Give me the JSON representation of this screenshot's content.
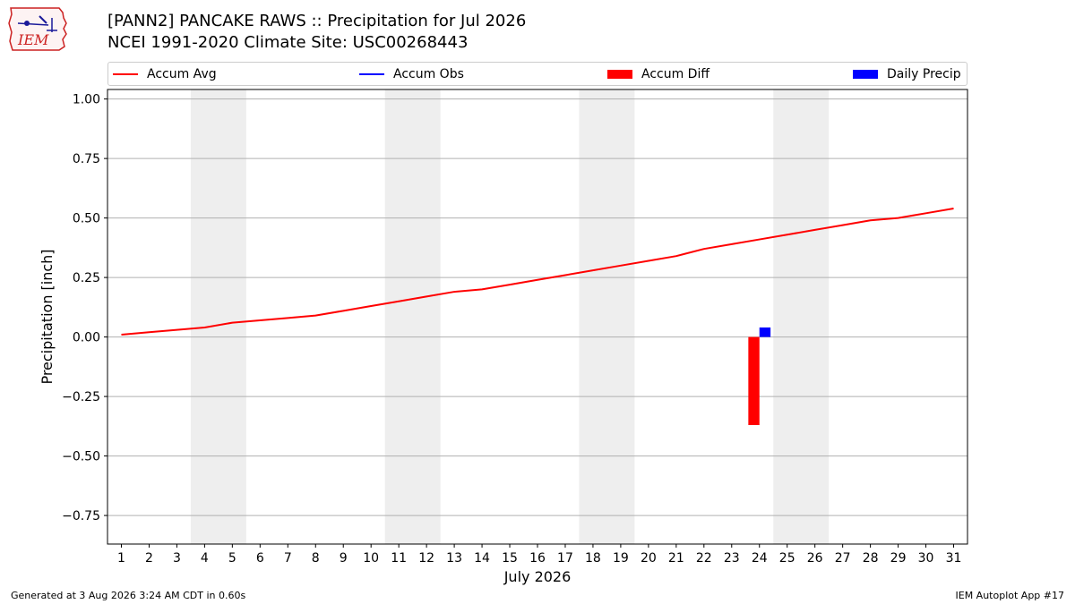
{
  "header": {
    "title_line1": "[PANN2] PANCAKE RAWS :: Precipitation for Jul 2026",
    "title_line2": "NCEI 1991-2020 Climate Site: USC00268443",
    "logo_text": "IEM"
  },
  "legend": [
    {
      "label": "Accum Avg",
      "kind": "line",
      "color": "#ff0000"
    },
    {
      "label": "Accum Obs",
      "kind": "line",
      "color": "#0000ff"
    },
    {
      "label": "Accum Diff",
      "kind": "box",
      "color": "#ff0000"
    },
    {
      "label": "Daily Precip",
      "kind": "box",
      "color": "#0000ff"
    }
  ],
  "chart_data": {
    "type": "line",
    "xlabel": "July 2026",
    "ylabel": "Precipitation [inch]",
    "x": [
      1,
      2,
      3,
      4,
      5,
      6,
      7,
      8,
      9,
      10,
      11,
      12,
      13,
      14,
      15,
      16,
      17,
      18,
      19,
      20,
      21,
      22,
      23,
      24,
      25,
      26,
      27,
      28,
      29,
      30,
      31
    ],
    "xlim": [
      0.5,
      31.5
    ],
    "ylim": [
      -0.87,
      1.04
    ],
    "yticks": [
      -0.75,
      -0.5,
      -0.25,
      0.0,
      0.25,
      0.5,
      0.75,
      1.0
    ],
    "ytick_labels": [
      "−0.75",
      "−0.50",
      "−0.25",
      "0.00",
      "0.25",
      "0.50",
      "0.75",
      "1.00"
    ],
    "grid": "horizontal",
    "weekend_shading": [
      [
        3.5,
        5.5
      ],
      [
        10.5,
        12.5
      ],
      [
        17.5,
        19.5
      ],
      [
        24.5,
        26.5
      ]
    ],
    "series": [
      {
        "name": "Accum Avg",
        "kind": "line",
        "color": "#ff0000",
        "x": [
          1,
          2,
          3,
          4,
          5,
          6,
          7,
          8,
          9,
          10,
          11,
          12,
          13,
          14,
          15,
          16,
          17,
          18,
          19,
          20,
          21,
          22,
          23,
          24,
          25,
          26,
          27,
          28,
          29,
          30,
          31
        ],
        "values": [
          0.01,
          0.02,
          0.03,
          0.04,
          0.06,
          0.07,
          0.08,
          0.09,
          0.11,
          0.13,
          0.15,
          0.17,
          0.19,
          0.2,
          0.22,
          0.24,
          0.26,
          0.28,
          0.3,
          0.32,
          0.34,
          0.37,
          0.39,
          0.41,
          0.43,
          0.45,
          0.47,
          0.49,
          0.5,
          0.52,
          0.54
        ]
      },
      {
        "name": "Accum Obs",
        "kind": "line",
        "color": "#0000ff",
        "x": [],
        "values": []
      },
      {
        "name": "Accum Diff",
        "kind": "bar",
        "color": "#ff0000",
        "x": [
          24
        ],
        "values": [
          -0.37
        ],
        "offset": -0.2
      },
      {
        "name": "Daily Precip",
        "kind": "bar",
        "color": "#0000ff",
        "x": [
          24
        ],
        "values": [
          0.04
        ],
        "offset": 0.2
      }
    ]
  },
  "footer": {
    "generated": "Generated at 3 Aug 2026 3:24 AM CDT in 0.60s",
    "app": "IEM Autoplot App #17"
  }
}
